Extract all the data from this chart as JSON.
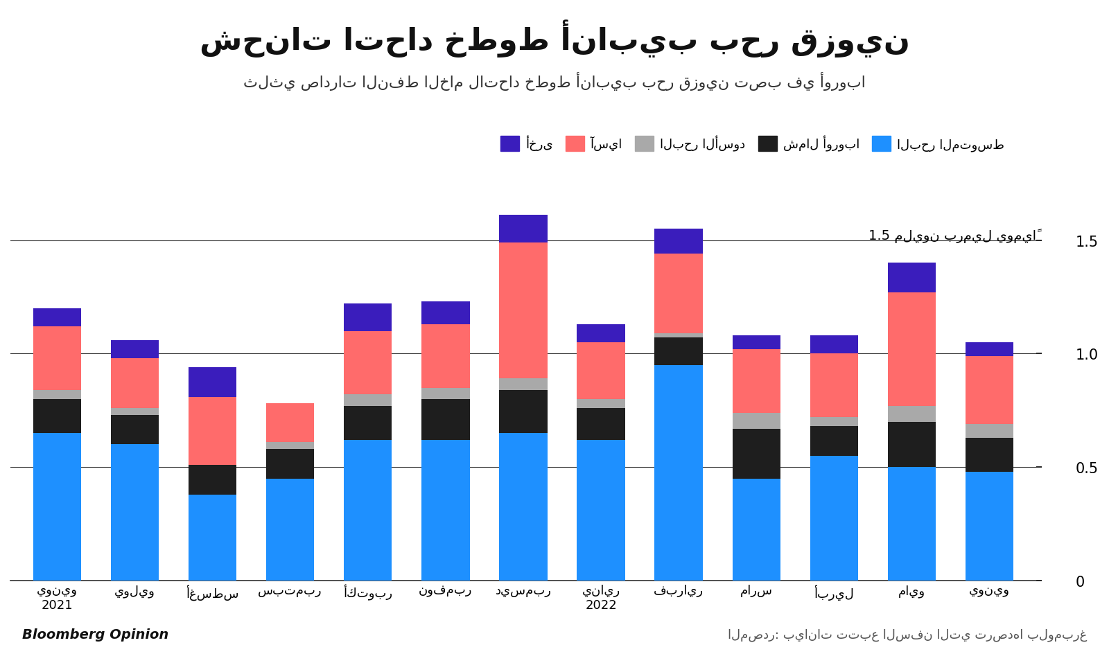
{
  "title": "شحنات اتحاد خطوط أنابيب بحر قزوين",
  "subtitle": "ثلثي صادرات النفط الخام لاتحاد خطوط أنابيب بحر قزوين تصب في أوروبا",
  "ylabel": "1.5 مليون برميل يومياً",
  "source_left": "Bloomberg Opinion",
  "source_right": "المصدر: بيانات تتبع السفن التي ترصدها بلومبرغ",
  "categories": [
    "يونيو\n2021",
    "يوليو",
    "أغسطس",
    "سبتمبر",
    "أكتوبر",
    "نوفمبر",
    "ديسمبر",
    "يناير\n2022",
    "فبراير",
    "مارس",
    "أبريل",
    "مايو",
    "يونيو"
  ],
  "legend_labels": [
    "البحر المتوسط",
    "شمال أوروبا",
    "البحر الأسود",
    "آسيا",
    "أخرى"
  ],
  "colors": [
    "#1E90FF",
    "#1E1E1E",
    "#A9A9A9",
    "#FF6B6B",
    "#3A1DBC"
  ],
  "mediterranean": [
    0.65,
    0.6,
    0.38,
    0.45,
    0.62,
    0.62,
    0.65,
    0.62,
    0.95,
    0.45,
    0.55,
    0.5,
    0.48
  ],
  "north_europe": [
    0.15,
    0.13,
    0.13,
    0.13,
    0.15,
    0.18,
    0.19,
    0.14,
    0.12,
    0.22,
    0.13,
    0.2,
    0.15
  ],
  "black_sea": [
    0.04,
    0.03,
    0.0,
    0.03,
    0.05,
    0.05,
    0.05,
    0.04,
    0.02,
    0.07,
    0.04,
    0.07,
    0.06
  ],
  "asia": [
    0.28,
    0.22,
    0.3,
    0.17,
    0.28,
    0.28,
    0.6,
    0.25,
    0.35,
    0.28,
    0.28,
    0.5,
    0.3
  ],
  "other": [
    0.08,
    0.08,
    0.13,
    0.0,
    0.12,
    0.1,
    0.12,
    0.08,
    0.11,
    0.06,
    0.08,
    0.13,
    0.06
  ],
  "ylim": [
    0,
    1.65
  ],
  "yticks": [
    0,
    0.5,
    1.0,
    1.5
  ],
  "background_color": "#FFFFFF"
}
